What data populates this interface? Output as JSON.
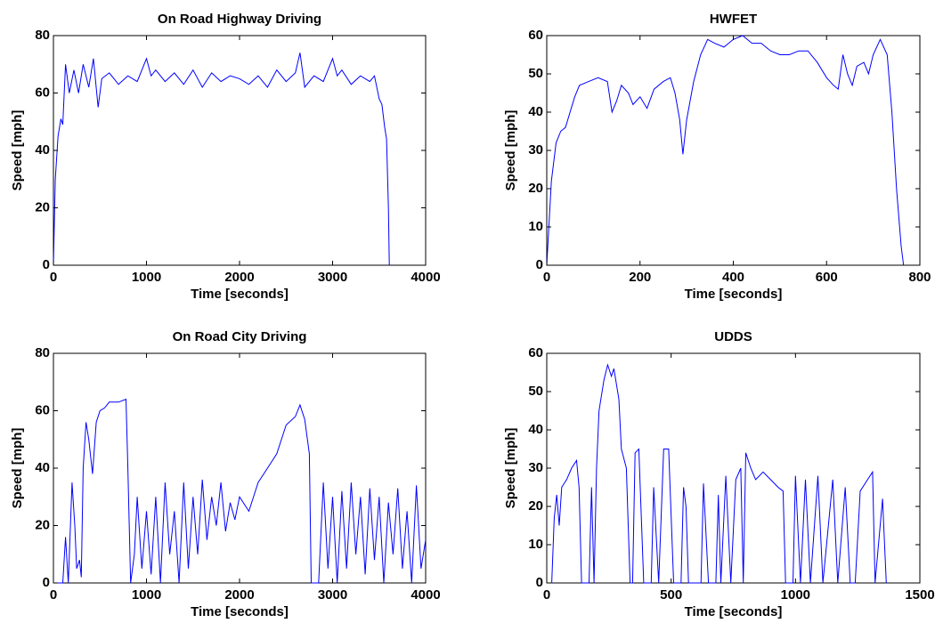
{
  "chart_data": [
    {
      "type": "line",
      "title": "On Road Highway Driving",
      "xlabel": "Time [seconds]",
      "ylabel": "Speed [mph]",
      "color": "#0000ff",
      "xlim": [
        0,
        4000
      ],
      "ylim": [
        0,
        80
      ],
      "xticks": [
        0,
        1000,
        2000,
        3000,
        4000
      ],
      "yticks": [
        0,
        20,
        40,
        60,
        80
      ],
      "x": [
        0,
        20,
        50,
        80,
        100,
        130,
        170,
        220,
        270,
        320,
        380,
        430,
        480,
        520,
        600,
        700,
        800,
        900,
        1000,
        1050,
        1100,
        1200,
        1300,
        1400,
        1500,
        1600,
        1700,
        1800,
        1900,
        2000,
        2100,
        2200,
        2300,
        2400,
        2500,
        2600,
        2650,
        2700,
        2800,
        2900,
        3000,
        3050,
        3100,
        3200,
        3300,
        3400,
        3450,
        3500,
        3530,
        3560,
        3580,
        3600,
        3610
      ],
      "values": [
        0,
        30,
        45,
        51,
        49,
        70,
        60,
        68,
        60,
        70,
        62,
        72,
        55,
        65,
        67,
        63,
        66,
        64,
        72,
        66,
        68,
        64,
        67,
        63,
        68,
        62,
        67,
        64,
        66,
        65,
        63,
        66,
        62,
        68,
        64,
        67,
        74,
        62,
        66,
        64,
        72,
        66,
        68,
        63,
        66,
        64,
        66,
        58,
        56,
        48,
        44,
        20,
        0
      ]
    },
    {
      "type": "line",
      "title": "HWFET",
      "xlabel": "Time [seconds]",
      "ylabel": "Speed [mph]",
      "color": "#0000ff",
      "xlim": [
        0,
        800
      ],
      "ylim": [
        0,
        60
      ],
      "xticks": [
        0,
        200,
        400,
        600,
        800
      ],
      "yticks": [
        0,
        10,
        20,
        30,
        40,
        50,
        60
      ],
      "x": [
        0,
        10,
        20,
        30,
        40,
        50,
        60,
        70,
        90,
        110,
        130,
        140,
        150,
        160,
        175,
        185,
        200,
        215,
        230,
        250,
        265,
        275,
        285,
        292,
        300,
        315,
        330,
        345,
        360,
        380,
        400,
        420,
        440,
        460,
        480,
        500,
        520,
        540,
        560,
        580,
        600,
        615,
        625,
        635,
        645,
        655,
        665,
        680,
        690,
        700,
        715,
        730,
        740,
        750,
        760,
        765
      ],
      "values": [
        0,
        22,
        32,
        35,
        36,
        40,
        44,
        47,
        48,
        49,
        48,
        40,
        43,
        47,
        45,
        42,
        44,
        41,
        46,
        48,
        49,
        45,
        38,
        29,
        38,
        48,
        55,
        59,
        58,
        57,
        59,
        60,
        58,
        58,
        56,
        55,
        55,
        56,
        56,
        53,
        49,
        47,
        46,
        55,
        50,
        47,
        52,
        53,
        50,
        55,
        59,
        55,
        40,
        20,
        5,
        0
      ]
    },
    {
      "type": "line",
      "title": "On Road City Driving",
      "xlabel": "Time [seconds]",
      "ylabel": "Speed [mph]",
      "color": "#0000ff",
      "xlim": [
        0,
        4000
      ],
      "ylim": [
        0,
        80
      ],
      "xticks": [
        0,
        1000,
        2000,
        3000,
        4000
      ],
      "yticks": [
        0,
        20,
        40,
        60,
        80
      ],
      "x": [
        0,
        100,
        130,
        160,
        200,
        230,
        250,
        280,
        300,
        320,
        350,
        380,
        420,
        460,
        500,
        550,
        600,
        700,
        780,
        800,
        830,
        870,
        900,
        950,
        1000,
        1050,
        1100,
        1150,
        1200,
        1250,
        1300,
        1350,
        1400,
        1450,
        1500,
        1550,
        1600,
        1650,
        1700,
        1750,
        1800,
        1850,
        1900,
        1950,
        2000,
        2100,
        2200,
        2300,
        2400,
        2500,
        2600,
        2650,
        2700,
        2750,
        2770,
        2850,
        2900,
        2950,
        3000,
        3050,
        3100,
        3150,
        3200,
        3250,
        3300,
        3350,
        3400,
        3450,
        3500,
        3550,
        3600,
        3650,
        3700,
        3750,
        3800,
        3850,
        3900,
        3950,
        4000
      ],
      "values": [
        0,
        0,
        16,
        0,
        35,
        20,
        5,
        8,
        2,
        40,
        56,
        50,
        38,
        56,
        60,
        61,
        63,
        63,
        64,
        40,
        0,
        10,
        30,
        5,
        25,
        3,
        30,
        0,
        35,
        10,
        25,
        0,
        35,
        5,
        30,
        10,
        36,
        15,
        30,
        20,
        35,
        18,
        28,
        22,
        30,
        25,
        35,
        40,
        45,
        55,
        58,
        62,
        57,
        45,
        0,
        0,
        35,
        5,
        30,
        0,
        32,
        5,
        35,
        10,
        30,
        3,
        33,
        8,
        30,
        0,
        28,
        10,
        33,
        5,
        25,
        0,
        34,
        5,
        15
      ]
    },
    {
      "type": "line",
      "title": "UDDS",
      "xlabel": "Time [seconds]",
      "ylabel": "Speed [mph]",
      "color": "#0000ff",
      "xlim": [
        0,
        1500
      ],
      "ylim": [
        0,
        60
      ],
      "xticks": [
        0,
        500,
        1000,
        1500
      ],
      "yticks": [
        0,
        10,
        20,
        30,
        40,
        50,
        60
      ],
      "x": [
        0,
        20,
        30,
        40,
        50,
        60,
        80,
        100,
        120,
        130,
        140,
        170,
        180,
        190,
        200,
        210,
        230,
        245,
        260,
        270,
        290,
        300,
        320,
        335,
        345,
        355,
        370,
        390,
        420,
        430,
        450,
        470,
        490,
        510,
        540,
        550,
        560,
        570,
        620,
        630,
        650,
        680,
        690,
        700,
        720,
        740,
        760,
        780,
        790,
        800,
        820,
        840,
        870,
        900,
        930,
        950,
        960,
        990,
        1000,
        1020,
        1040,
        1060,
        1090,
        1110,
        1150,
        1170,
        1200,
        1220,
        1240,
        1260,
        1290,
        1310,
        1320,
        1350,
        1365
      ],
      "values": [
        0,
        0,
        17,
        23,
        15,
        25,
        27,
        30,
        32,
        25,
        0,
        0,
        25,
        0,
        30,
        45,
        53,
        57,
        54,
        56,
        48,
        35,
        30,
        0,
        0,
        34,
        35,
        0,
        0,
        25,
        0,
        35,
        35,
        0,
        0,
        25,
        20,
        0,
        0,
        26,
        0,
        0,
        23,
        0,
        28,
        0,
        27,
        30,
        0,
        34,
        30,
        27,
        29,
        27,
        25,
        24,
        0,
        0,
        28,
        0,
        27,
        0,
        28,
        0,
        27,
        0,
        25,
        0,
        0,
        24,
        27,
        29,
        0,
        22,
        0
      ]
    }
  ]
}
